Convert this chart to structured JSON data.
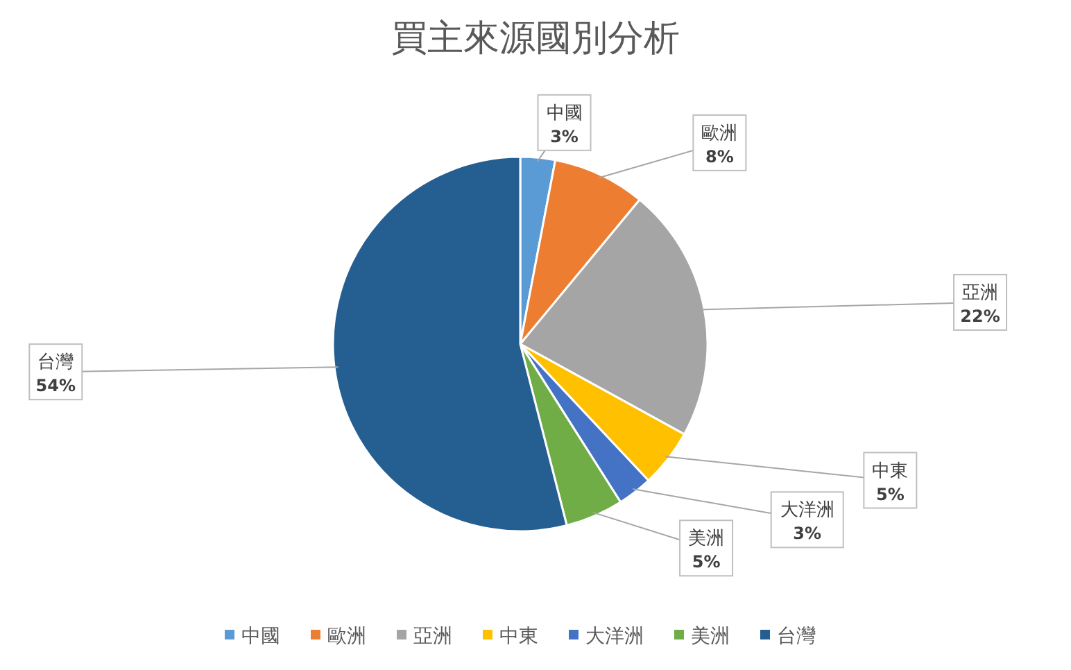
{
  "chart_data": {
    "type": "pie",
    "title": "買主來源國別分析",
    "categories": [
      "中國",
      "歐洲",
      "亞洲",
      "中東",
      "大洋洲",
      "美洲",
      "台灣"
    ],
    "values": [
      3,
      8,
      22,
      5,
      3,
      5,
      54
    ],
    "colors": [
      "#5b9bd5",
      "#ed7d31",
      "#a5a5a5",
      "#ffc000",
      "#4472c4",
      "#70ad47",
      "#255e91"
    ],
    "value_labels": [
      "3%",
      "8%",
      "22%",
      "5%",
      "3%",
      "5%",
      "54%"
    ],
    "legend": "bottom"
  }
}
